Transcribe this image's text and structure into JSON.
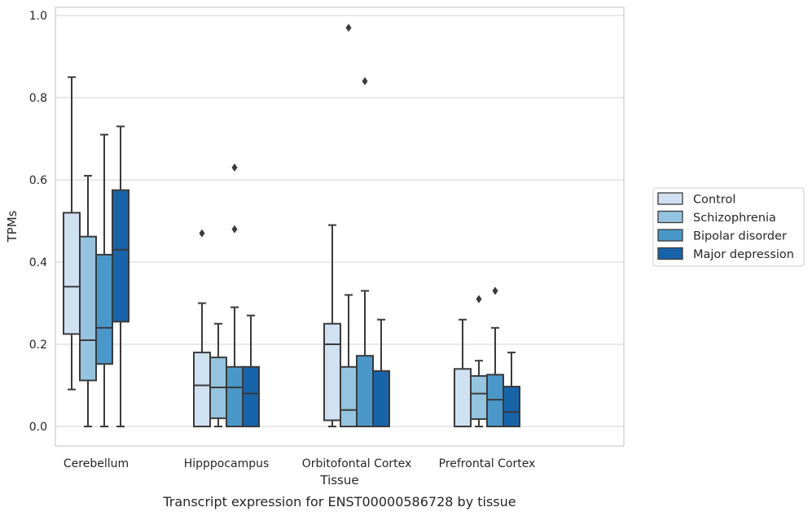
{
  "chart_data": {
    "type": "box",
    "xlabel": "Tissue",
    "ylabel": "TPMs",
    "caption": "Transcript expression for ENST00000586728 by tissue",
    "ylim": [
      -0.045,
      1.02
    ],
    "yticks": [
      "0.0",
      "0.2",
      "0.4",
      "0.6",
      "0.8",
      "1.0"
    ],
    "ytick_values": [
      0.0,
      0.2,
      0.4,
      0.6,
      0.8,
      1.0
    ],
    "grid": true,
    "legend_position": "right",
    "categories": [
      "Cerebellum",
      "Hipppocampus",
      "Orbitofontal Cortex",
      "Prefrontal Cortex"
    ],
    "series": [
      {
        "name": "Control",
        "color": "#d0e1f2",
        "boxes": [
          {
            "whislo": 0.09,
            "q1": 0.225,
            "med": 0.34,
            "q3": 0.52,
            "whishi": 0.85,
            "fliers": []
          },
          {
            "whislo": 0.0,
            "q1": 0.0,
            "med": 0.1,
            "q3": 0.18,
            "whishi": 0.3,
            "fliers": [
              0.47
            ]
          },
          {
            "whislo": 0.0,
            "q1": 0.015,
            "med": 0.2,
            "q3": 0.25,
            "whishi": 0.49,
            "fliers": []
          },
          {
            "whislo": 0.0,
            "q1": 0.0,
            "med": 0.0,
            "q3": 0.14,
            "whishi": 0.26,
            "fliers": []
          }
        ]
      },
      {
        "name": "Schizophrenia",
        "color": "#94c4df",
        "boxes": [
          {
            "whislo": 0.0,
            "q1": 0.112,
            "med": 0.21,
            "q3": 0.462,
            "whishi": 0.61,
            "fliers": []
          },
          {
            "whislo": 0.0,
            "q1": 0.02,
            "med": 0.095,
            "q3": 0.168,
            "whishi": 0.25,
            "fliers": []
          },
          {
            "whislo": 0.0,
            "q1": 0.0,
            "med": 0.04,
            "q3": 0.145,
            "whishi": 0.32,
            "fliers": [
              0.97
            ]
          },
          {
            "whislo": 0.0,
            "q1": 0.018,
            "med": 0.08,
            "q3": 0.123,
            "whishi": 0.16,
            "fliers": [
              0.31
            ]
          }
        ]
      },
      {
        "name": "Bipolar disorder",
        "color": "#4a98c9",
        "boxes": [
          {
            "whislo": 0.0,
            "q1": 0.152,
            "med": 0.24,
            "q3": 0.418,
            "whishi": 0.71,
            "fliers": []
          },
          {
            "whislo": 0.0,
            "q1": 0.0,
            "med": 0.095,
            "q3": 0.145,
            "whishi": 0.29,
            "fliers": [
              0.48,
              0.63
            ]
          },
          {
            "whislo": 0.0,
            "q1": 0.0,
            "med": 0.0,
            "q3": 0.172,
            "whishi": 0.33,
            "fliers": [
              0.84
            ]
          },
          {
            "whislo": 0.0,
            "q1": 0.0,
            "med": 0.065,
            "q3": 0.126,
            "whishi": 0.24,
            "fliers": [
              0.33
            ]
          }
        ]
      },
      {
        "name": "Major depression",
        "color": "#1764ab",
        "boxes": [
          {
            "whislo": 0.0,
            "q1": 0.255,
            "med": 0.43,
            "q3": 0.575,
            "whishi": 0.73,
            "fliers": []
          },
          {
            "whislo": 0.0,
            "q1": 0.0,
            "med": 0.08,
            "q3": 0.145,
            "whishi": 0.27,
            "fliers": []
          },
          {
            "whislo": 0.0,
            "q1": 0.0,
            "med": 0.0,
            "q3": 0.135,
            "whishi": 0.26,
            "fliers": []
          },
          {
            "whislo": 0.0,
            "q1": 0.0,
            "med": 0.035,
            "q3": 0.097,
            "whishi": 0.18,
            "fliers": []
          }
        ]
      }
    ]
  }
}
